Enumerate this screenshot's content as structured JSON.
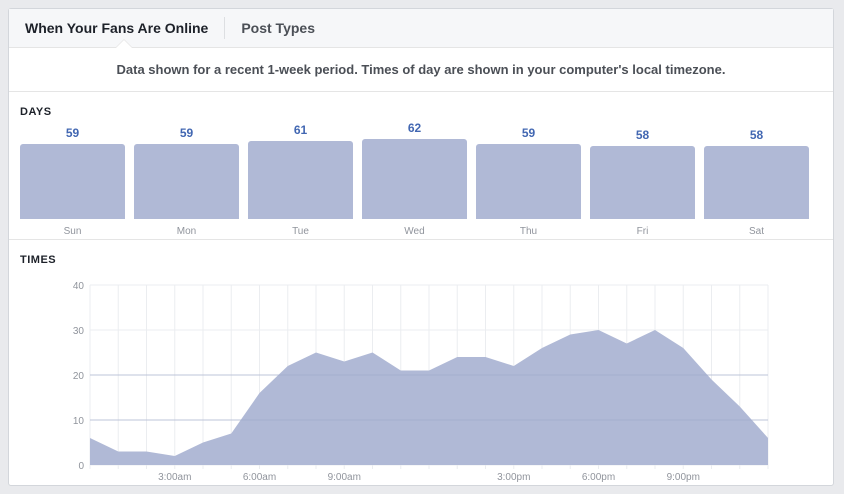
{
  "tabs": [
    {
      "label": "When Your Fans Are Online",
      "active": true
    },
    {
      "label": "Post Types",
      "active": false
    }
  ],
  "notice": "Data shown for a recent 1-week period. Times of day are shown in your computer's local timezone.",
  "days_section": {
    "label": "DAYS"
  },
  "times_section": {
    "label": "TIMES"
  },
  "colors": {
    "bar": "#b0b9d6",
    "value_text": "#4267b2",
    "axis_text": "#90949c",
    "grid": "#ebedf0"
  },
  "chart_data": [
    {
      "type": "bar",
      "title": "DAYS",
      "categories": [
        "Sun",
        "Mon",
        "Tue",
        "Wed",
        "Thu",
        "Fri",
        "Sat"
      ],
      "values": [
        59,
        59,
        61,
        62,
        59,
        58,
        58
      ],
      "xlabel": "",
      "ylabel": ""
    },
    {
      "type": "area",
      "title": "TIMES",
      "x": [
        "12:00am",
        "1:00am",
        "2:00am",
        "3:00am",
        "4:00am",
        "5:00am",
        "6:00am",
        "7:00am",
        "8:00am",
        "9:00am",
        "10:00am",
        "11:00am",
        "12:00pm",
        "1:00pm",
        "2:00pm",
        "3:00pm",
        "4:00pm",
        "5:00pm",
        "6:00pm",
        "7:00pm",
        "8:00pm",
        "9:00pm",
        "10:00pm",
        "11:00pm",
        "12:00am"
      ],
      "values": [
        6,
        3,
        3,
        2,
        5,
        7,
        16,
        22,
        25,
        23,
        25,
        21,
        21,
        24,
        24,
        22,
        26,
        29,
        30,
        27,
        30,
        26,
        19,
        13,
        6
      ],
      "x_tick_labels": [
        {
          "index": 3,
          "label": "3:00am"
        },
        {
          "index": 6,
          "label": "6:00am"
        },
        {
          "index": 9,
          "label": "9:00am"
        },
        {
          "index": 15,
          "label": "3:00pm"
        },
        {
          "index": 18,
          "label": "6:00pm"
        },
        {
          "index": 21,
          "label": "9:00pm"
        }
      ],
      "y_ticks": [
        0,
        10,
        20,
        30,
        40
      ],
      "ylim": [
        0,
        40
      ],
      "grid": true,
      "xlabel": "",
      "ylabel": ""
    }
  ]
}
